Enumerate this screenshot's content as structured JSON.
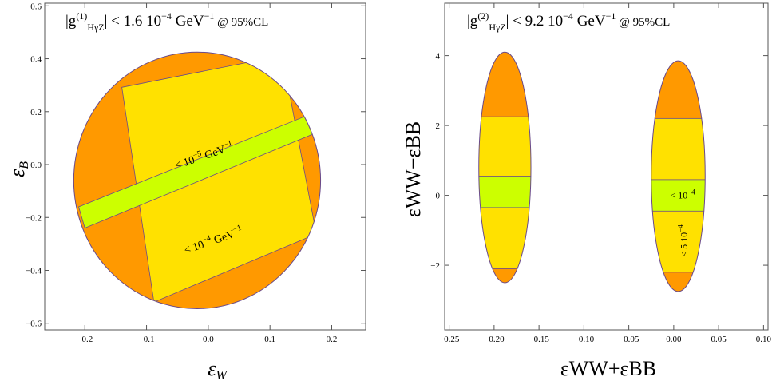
{
  "colors": {
    "orange": "#ff9900",
    "yellow": "#ffe100",
    "green": "#ccff00",
    "outline": "#6a4a8a"
  },
  "chart_data": [
    {
      "type": "contour",
      "title_parts": {
        "pre": "|g",
        "sup": "(1)",
        "sub": "HγZ",
        "post": "| < 1.6 10",
        "exp": "−4",
        "unit": " GeV",
        "unit_exp": "−1",
        "cl": " @ 95%CL"
      },
      "xlabel": {
        "main": "ε",
        "sub": "W"
      },
      "ylabel": {
        "main": "ε",
        "sub": "B"
      },
      "xlim": [
        -0.265,
        0.255
      ],
      "ylim": [
        -0.625,
        0.61
      ],
      "xticks": [
        -0.2,
        -0.1,
        0.0,
        0.1,
        0.2
      ],
      "xticklabels": [
        "−0.2",
        "−0.1",
        "0.0",
        "0.1",
        "0.2"
      ],
      "yticks": [
        -0.6,
        -0.4,
        -0.2,
        0.0,
        0.2,
        0.4,
        0.6
      ],
      "yticklabels": [
        "−0.6",
        "−0.4",
        "−0.2",
        "0.0",
        "0.2",
        "0.4",
        "0.6"
      ],
      "ellipse": {
        "cx": -0.018,
        "cy": -0.06,
        "rx": 0.2,
        "ry": 0.485
      },
      "yellow_band": [
        [
          -0.14,
          0.292
        ],
        [
          0.12,
          0.412
        ],
        [
          0.175,
          -0.262
        ],
        [
          -0.088,
          -0.52
        ]
      ],
      "green_band": [
        [
          -0.21,
          -0.16
        ],
        [
          0.176,
          0.2
        ],
        [
          0.185,
          0.13
        ],
        [
          -0.2,
          -0.24
        ]
      ],
      "labels": {
        "green": {
          "text": "< 10",
          "exp": "−5",
          "unit": " GeV",
          "unit_exp": "−1",
          "x": -0.005,
          "y": 0.02,
          "angle": -19
        },
        "yellow": {
          "text": "< 10",
          "exp": "−4",
          "unit": " GeV",
          "unit_exp": "−1",
          "x": 0.01,
          "y": -0.3,
          "angle": -19
        }
      }
    },
    {
      "type": "contour",
      "title_parts": {
        "pre": "|g",
        "sup": "(2)",
        "sub": "HγZ",
        "post": "| < 9.2 10",
        "exp": "−4",
        "unit": " GeV",
        "unit_exp": "−1",
        "cl": " @ 95%CL"
      },
      "xlabel": {
        "text": "εWW+εBB"
      },
      "ylabel": {
        "text": "εWW−εBB"
      },
      "xlim": [
        -0.255,
        0.105
      ],
      "ylim": [
        -3.85,
        5.5
      ],
      "xticks": [
        -0.25,
        -0.2,
        -0.15,
        -0.1,
        -0.05,
        0.0,
        0.05,
        0.1
      ],
      "xticklabels": [
        "−0.25",
        "−0.20",
        "−0.15",
        "−0.10",
        "−0.05",
        "0.00",
        "0.05",
        "0.10"
      ],
      "yticks": [
        -2,
        0,
        2,
        4
      ],
      "yticklabels": [
        "−2",
        "0",
        "2",
        "4"
      ],
      "blobs": [
        {
          "cx": -0.188,
          "cy": 0.8,
          "rx": 0.029,
          "ry": 3.3,
          "yellow_top": 2.25,
          "yellow_bot": -2.1,
          "green_top": 0.55,
          "green_bot": -0.35
        },
        {
          "cx": 0.005,
          "cy": 0.55,
          "rx": 0.03,
          "ry": 3.3,
          "yellow_top": 2.2,
          "yellow_bot": -2.2,
          "green_top": 0.45,
          "green_bot": -0.45
        }
      ],
      "labels": {
        "green": {
          "text": "< 10",
          "exp": "−4",
          "x": 0.01,
          "y": 0.0,
          "angle": 0
        },
        "yellow": {
          "text": "< 5 10",
          "exp": "−4",
          "x": 0.015,
          "y": -1.3,
          "angle": -90
        }
      }
    }
  ]
}
